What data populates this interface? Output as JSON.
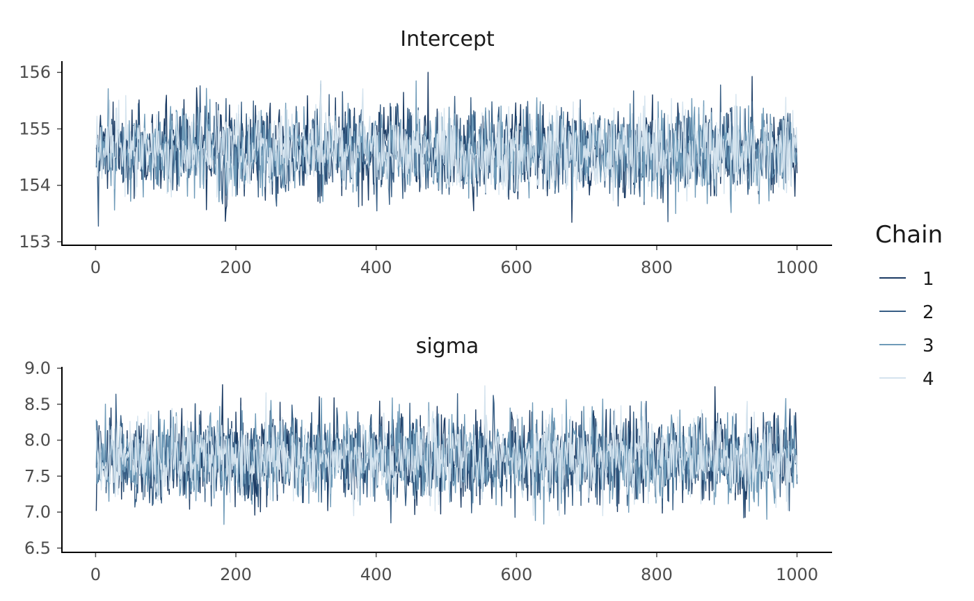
{
  "chart_data": [
    {
      "type": "line",
      "title": "Intercept",
      "xlabel": "",
      "ylabel": "",
      "xlim": [
        -48,
        1048
      ],
      "ylim": [
        152.95,
        156.2
      ],
      "x_ticks": [
        0,
        200,
        400,
        600,
        800,
        1000
      ],
      "x_tick_labels": [
        "0",
        "200",
        "400",
        "600",
        "800",
        "1000"
      ],
      "y_ticks": [
        153,
        154,
        155,
        156
      ],
      "y_tick_labels": [
        "153",
        "154",
        "155",
        "156"
      ],
      "grid": false,
      "series": [
        {
          "name": "1",
          "summary": {
            "center": 154.6,
            "spread": 0.38,
            "min": 153.05,
            "max": 156.05,
            "n_draws": 1000
          }
        },
        {
          "name": "2",
          "summary": {
            "center": 154.6,
            "spread": 0.38,
            "min": 153.25,
            "max": 156.0,
            "n_draws": 1000
          }
        },
        {
          "name": "3",
          "summary": {
            "center": 154.6,
            "spread": 0.38,
            "min": 153.5,
            "max": 155.85,
            "n_draws": 1000
          }
        },
        {
          "name": "4",
          "summary": {
            "center": 154.6,
            "spread": 0.36,
            "min": 153.3,
            "max": 155.85,
            "n_draws": 1000
          }
        }
      ]
    },
    {
      "type": "line",
      "title": "sigma",
      "xlabel": "",
      "ylabel": "",
      "xlim": [
        -48,
        1048
      ],
      "ylim": [
        6.45,
        9.0
      ],
      "x_ticks": [
        0,
        200,
        400,
        600,
        800,
        1000
      ],
      "x_tick_labels": [
        "0",
        "200",
        "400",
        "600",
        "800",
        "1000"
      ],
      "y_ticks": [
        6.5,
        7.0,
        7.5,
        8.0,
        8.5,
        9.0
      ],
      "y_tick_labels": [
        "6.5",
        "7.0",
        "7.5",
        "8.0",
        "8.5",
        "9.0"
      ],
      "grid": false,
      "series": [
        {
          "name": "1",
          "summary": {
            "center": 7.75,
            "spread": 0.3,
            "min": 6.8,
            "max": 8.85,
            "n_draws": 1000
          }
        },
        {
          "name": "2",
          "summary": {
            "center": 7.75,
            "spread": 0.3,
            "min": 6.85,
            "max": 8.9,
            "n_draws": 1000
          }
        },
        {
          "name": "3",
          "summary": {
            "center": 7.75,
            "spread": 0.3,
            "min": 6.55,
            "max": 8.6,
            "n_draws": 1000
          }
        },
        {
          "name": "4",
          "summary": {
            "center": 7.75,
            "spread": 0.28,
            "min": 6.95,
            "max": 8.8,
            "n_draws": 1000
          }
        }
      ]
    }
  ],
  "legend": {
    "title": "Chain",
    "placement": "right",
    "entries": [
      {
        "label": "1",
        "color": "#1a3a63"
      },
      {
        "label": "2",
        "color": "#365d84"
      },
      {
        "label": "3",
        "color": "#6e9ab8"
      },
      {
        "label": "4",
        "color": "#d4e3ee"
      }
    ]
  }
}
